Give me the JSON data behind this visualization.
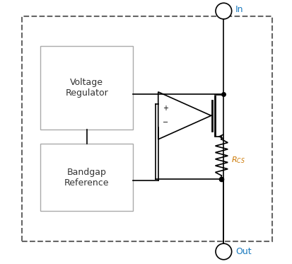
{
  "bg_color": "#ffffff",
  "line_color": "#000000",
  "blue_text_color": "#1a7abf",
  "box_edge_color": "#aaaaaa",
  "dash_border_color": "#666666",
  "figsize": [
    4.14,
    3.73
  ],
  "dpi": 100,
  "in_label": "In",
  "out_label": "Out",
  "vr_label": "Voltage\nRegulator",
  "bg_label": "Bandgap\nReference",
  "rcs_label": "$R_{CS}$",
  "plus_label": "+",
  "minus_label": "−"
}
